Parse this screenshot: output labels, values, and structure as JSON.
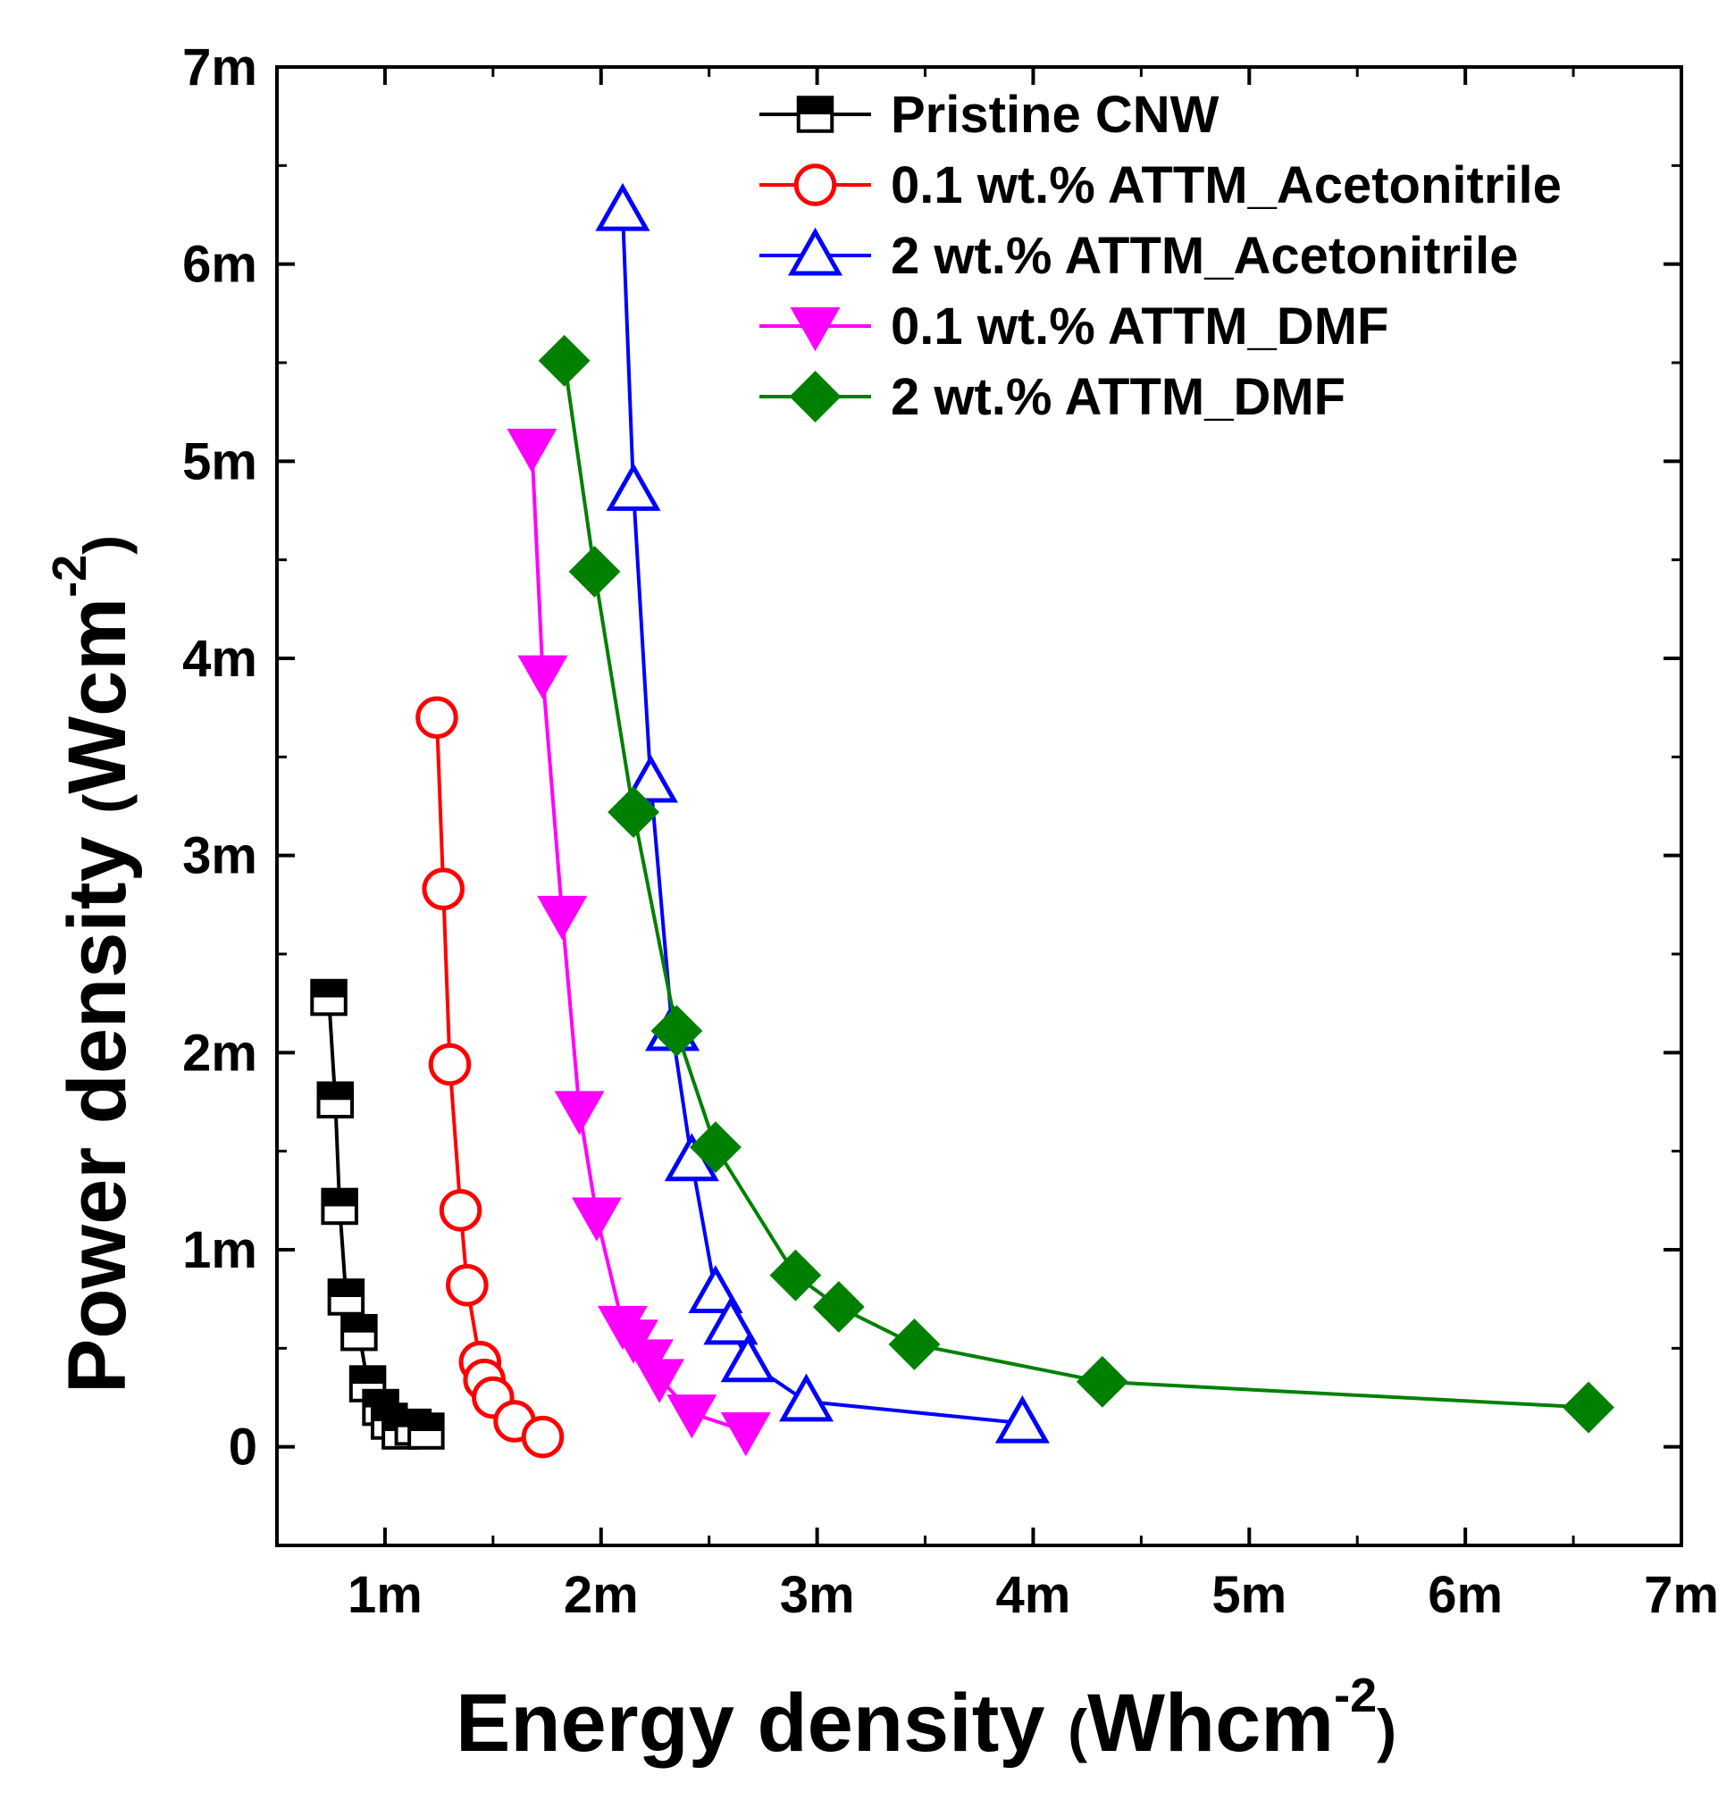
{
  "chart_data": {
    "type": "line",
    "xlabel": "Energy density",
    "xlabel_unit_open": "(",
    "xlabel_unit": "Whcm",
    "xlabel_unit_sup": "-2",
    "xlabel_unit_close": ")",
    "ylabel": "Power density",
    "ylabel_unit_open": "(",
    "ylabel_unit": "Wcm",
    "ylabel_unit_sup": "-2",
    "ylabel_unit_close": ")",
    "xlim": [
      0.5,
      7
    ],
    "ylim": [
      -0.5,
      7
    ],
    "xticks": [
      1,
      2,
      3,
      4,
      5,
      6,
      7
    ],
    "xtick_labels": [
      "1m",
      "2m",
      "3m",
      "4m",
      "5m",
      "6m",
      "7m"
    ],
    "yticks": [
      0,
      1,
      2,
      3,
      4,
      5,
      6,
      7
    ],
    "ytick_labels": [
      "0",
      "1m",
      "2m",
      "3m",
      "4m",
      "5m",
      "6m",
      "7m"
    ],
    "legend_position": "top-right",
    "series": [
      {
        "name": "Pristine CNW",
        "color": "#000000",
        "marker": "half-square",
        "x": [
          0.74,
          0.77,
          0.79,
          0.82,
          0.88,
          0.92,
          0.98,
          1.02,
          1.07,
          1.13,
          1.19
        ],
        "y": [
          2.28,
          1.76,
          1.22,
          0.76,
          0.58,
          0.32,
          0.2,
          0.13,
          0.08,
          0.1,
          0.08
        ]
      },
      {
        "name": "0.1 wt.% ATTM_Acetonitrile",
        "color": "#ff0000",
        "marker": "open-circle",
        "x": [
          1.24,
          1.27,
          1.3,
          1.35,
          1.38,
          1.44,
          1.46,
          1.5,
          1.6,
          1.73
        ],
        "y": [
          3.7,
          2.83,
          1.94,
          1.2,
          0.82,
          0.43,
          0.34,
          0.25,
          0.13,
          0.05
        ]
      },
      {
        "name": "2 wt.% ATTM_Acetonitrile",
        "color": "#0000ff",
        "marker": "open-triangle-up",
        "x": [
          2.1,
          2.15,
          2.23,
          2.33,
          2.42,
          2.53,
          2.6,
          2.68,
          2.95,
          3.95
        ],
        "y": [
          6.27,
          4.85,
          3.37,
          2.11,
          1.45,
          0.78,
          0.62,
          0.43,
          0.23,
          0.12
        ]
      },
      {
        "name": "0.1 wt.% ATTM_DMF",
        "color": "#ff00ff",
        "marker": "filled-triangle-down",
        "x": [
          1.68,
          1.73,
          1.82,
          1.9,
          1.98,
          2.1,
          2.15,
          2.22,
          2.27,
          2.42,
          2.67
        ],
        "y": [
          5.07,
          3.92,
          2.7,
          1.71,
          1.17,
          0.62,
          0.55,
          0.45,
          0.35,
          0.17,
          0.08
        ]
      },
      {
        "name": "2 wt.% ATTM_DMF",
        "color": "#008000",
        "marker": "filled-diamond",
        "x": [
          1.83,
          1.97,
          2.15,
          2.35,
          2.53,
          2.9,
          3.1,
          3.45,
          4.32,
          6.57
        ],
        "y": [
          5.51,
          4.44,
          3.22,
          2.11,
          1.52,
          0.87,
          0.71,
          0.52,
          0.33,
          0.2
        ]
      }
    ]
  }
}
